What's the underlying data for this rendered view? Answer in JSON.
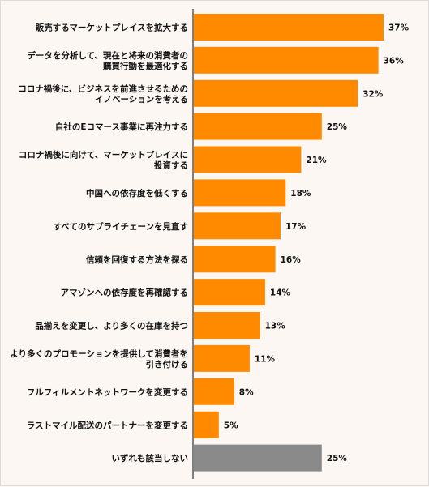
{
  "chart_data": {
    "type": "bar",
    "orientation": "horizontal",
    "title": "",
    "xlabel": "",
    "ylabel": "",
    "xlim": [
      0,
      37
    ],
    "grid": false,
    "legend": "none",
    "colors": {
      "bar": "#ff8a00",
      "bar_none": "#8a8a8a",
      "axis": "#7f7f7f"
    },
    "categories": [
      [
        "販売するマーケットプレイスを拡大する"
      ],
      [
        "データを分析して、現在と将来の消費者の",
        "購買行動を最適化する"
      ],
      [
        "コロナ禍後に、ビジネスを前進させるための",
        "イノベーションを考える"
      ],
      [
        "自社のEコマース事業に再注力する"
      ],
      [
        "コロナ禍後に向けて、マーケットプレイスに",
        "投資する"
      ],
      [
        "中国への依存度を低くする"
      ],
      [
        "すべてのサプライチェーンを見直す"
      ],
      [
        "信頼を回復する方法を探る"
      ],
      [
        "アマゾンへの依存度を再確認する"
      ],
      [
        "品揃えを変更し、より多くの在庫を持つ"
      ],
      [
        "より多くのプロモーションを提供して消費者を",
        "引き付ける"
      ],
      [
        "フルフィルメントネットワークを変更する"
      ],
      [
        "ラストマイル配送のパートナーを変更する"
      ],
      [
        "いずれも該当しない"
      ]
    ],
    "values": [
      37,
      36,
      32,
      25,
      21,
      18,
      17,
      16,
      14,
      13,
      11,
      8,
      5,
      25
    ],
    "value_labels": [
      "37%",
      "36%",
      "32%",
      "25%",
      "21%",
      "18%",
      "17%",
      "16%",
      "14%",
      "13%",
      "11%",
      "8%",
      "5%",
      "25%"
    ]
  }
}
